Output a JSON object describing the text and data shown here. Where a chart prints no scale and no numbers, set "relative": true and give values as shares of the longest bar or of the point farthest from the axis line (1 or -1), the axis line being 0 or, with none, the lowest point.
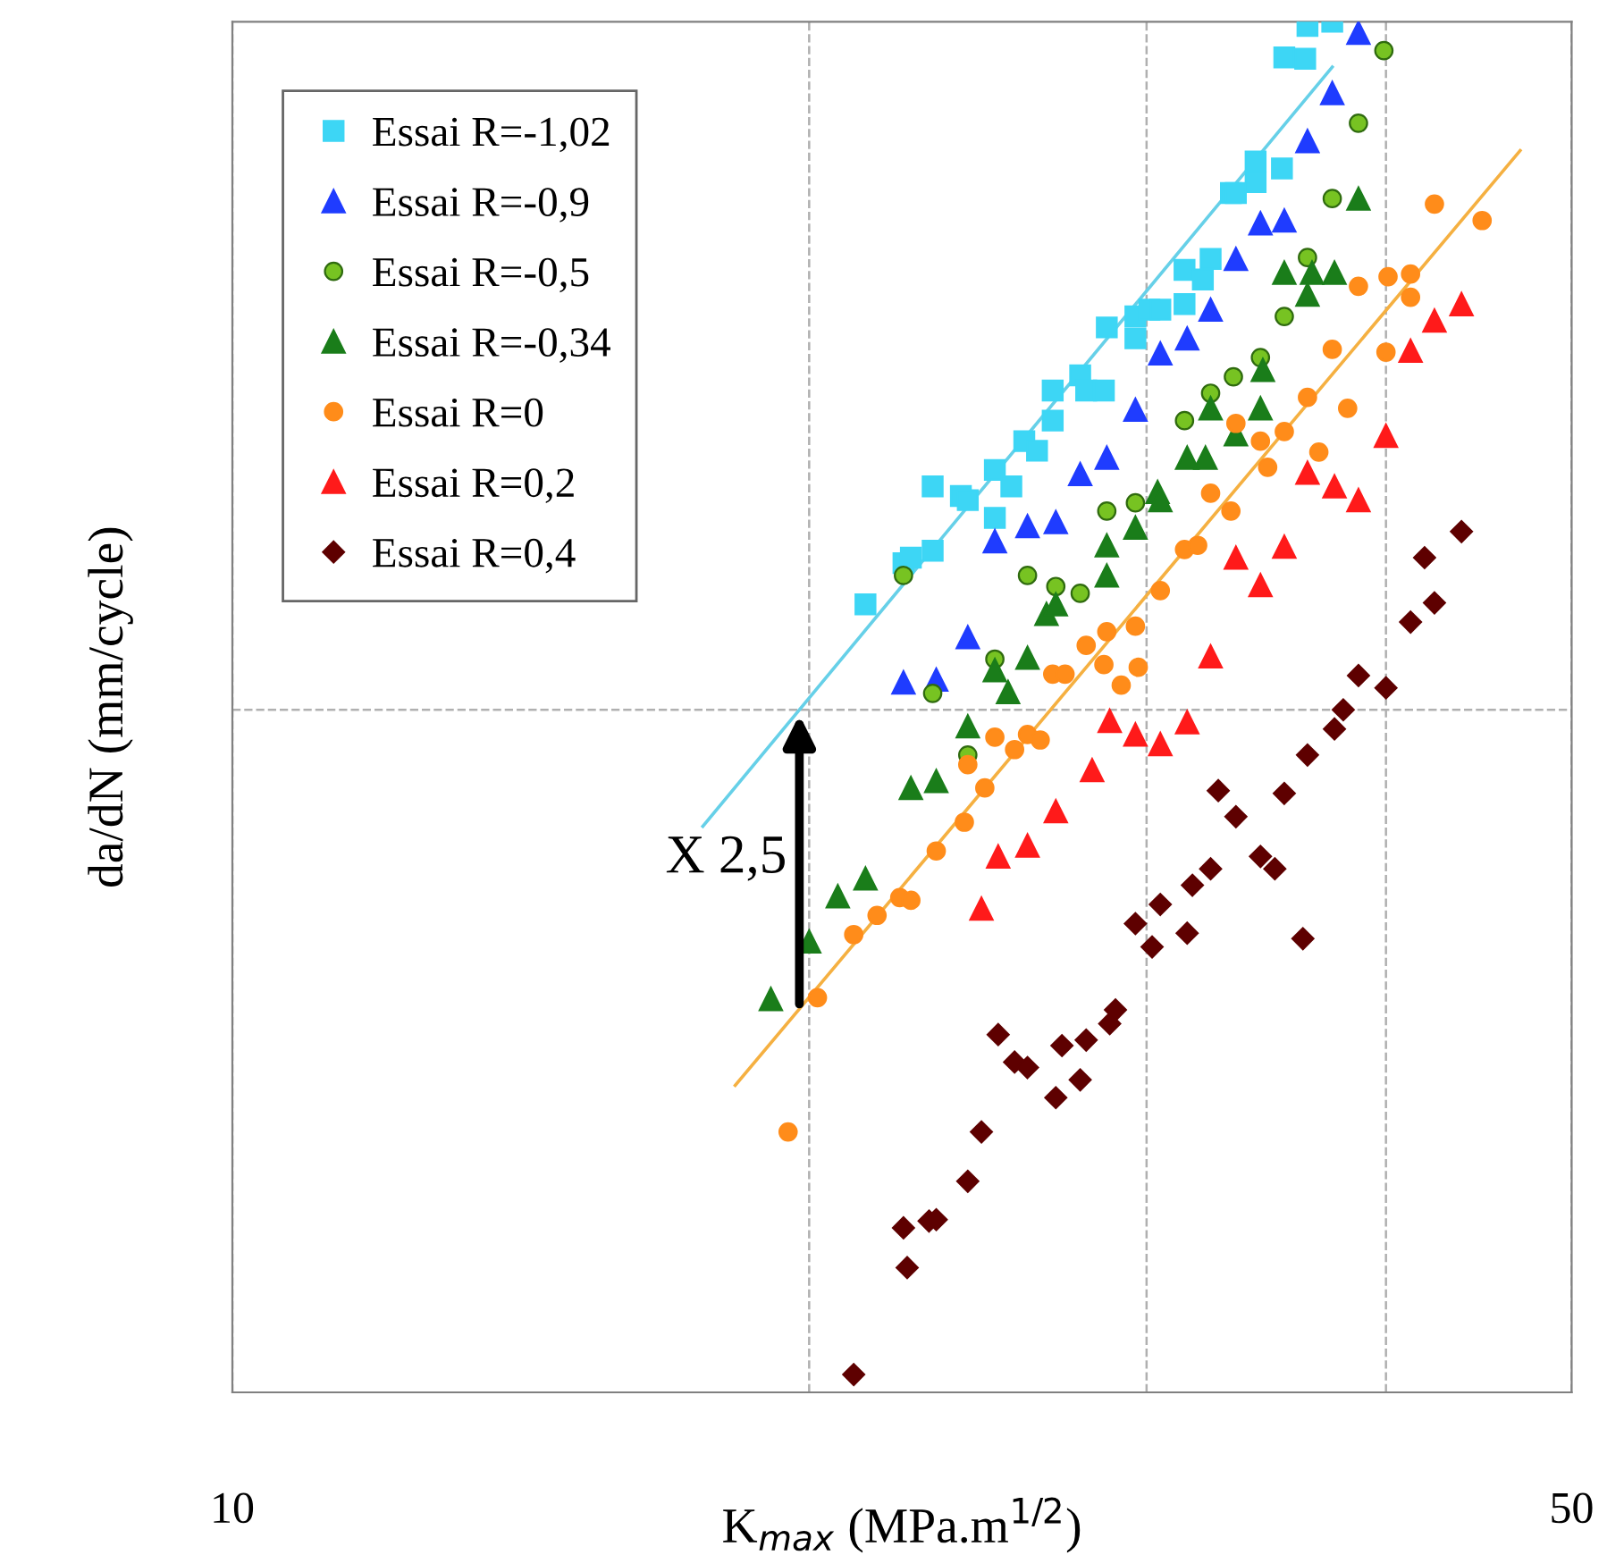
{
  "chart_data": {
    "type": "scatter",
    "xlabel": "K$_{max}$ (MPa.m$^{1/2}$)",
    "ylabel": "da/dN (mm/cycle)",
    "log": "x",
    "relative": true,
    "xlim": [
      10,
      50
    ],
    "xticks": [
      10,
      {
        "value": 20,
        "label": null
      },
      {
        "value": 30,
        "label": null
      },
      {
        "value": 40,
        "label": null
      },
      50
    ],
    "grid": "x",
    "legend": "top left",
    "ref_lines": [
      {
        "axis": "y",
        "value": 0.498,
        "color": "#b0b0b0",
        "line_style": "dashed"
      }
    ],
    "annotations": [
      "X 2,5"
    ],
    "series": [
      {
        "name": "Essai R=-1,02",
        "color": "#3dd6f5",
        "marker": "square",
        "x": [
          21.4,
          22.4,
          22.6,
          23.2,
          23.2,
          24.0,
          24.2,
          25.0,
          25.5,
          25.0,
          25.9,
          26.3,
          26.8,
          26.8,
          27.7,
          27.9,
          28.5,
          28.6,
          29.6,
          29.6,
          30.1,
          30.5,
          31.4,
          31.4,
          32.1,
          32.4,
          33.2,
          33.4,
          34.2,
          34.2,
          35.3,
          35.4,
          36.3,
          36.4,
          37.5
        ],
        "values": [
          0.575,
          0.605,
          0.609,
          0.614,
          0.661,
          0.654,
          0.651,
          0.673,
          0.661,
          0.638,
          0.694,
          0.687,
          0.731,
          0.709,
          0.742,
          0.731,
          0.731,
          0.777,
          0.785,
          0.769,
          0.79,
          0.79,
          0.819,
          0.794,
          0.812,
          0.827,
          0.875,
          0.875,
          0.898,
          0.883,
          0.893,
          0.974,
          0.973,
          0.997,
          1.0
        ]
      },
      {
        "name": "Essai R=-0,9",
        "color": "#1f3cff",
        "marker": "triangle",
        "x": [
          22.4,
          23.3,
          24.2,
          25.0,
          26.0,
          26.9,
          27.7,
          28.6,
          29.6,
          30.5,
          31.5,
          32.4,
          33.4,
          34.4,
          35.4,
          36.4,
          37.5,
          38.7
        ],
        "values": [
          0.518,
          0.52,
          0.551,
          0.621,
          0.632,
          0.635,
          0.67,
          0.682,
          0.717,
          0.758,
          0.769,
          0.79,
          0.827,
          0.853,
          0.855,
          0.913,
          0.948,
          0.992
        ]
      },
      {
        "name": "Essai R=-0,5",
        "color": "#77c322",
        "marker": "circle",
        "x": [
          22.4,
          23.2,
          24.2,
          25.0,
          26.0,
          26.9,
          27.7,
          28.6,
          29.6,
          31.4,
          32.4,
          33.3,
          34.4,
          35.4,
          36.4,
          37.5,
          38.7,
          39.9
        ],
        "values": [
          0.596,
          0.51,
          0.465,
          0.535,
          0.596,
          0.588,
          0.583,
          0.643,
          0.649,
          0.709,
          0.729,
          0.741,
          0.755,
          0.785,
          0.828,
          0.871,
          0.926,
          0.979
        ]
      },
      {
        "name": "Essai R=-0,34",
        "color": "#1a7d1a",
        "marker": "triangle",
        "x": [
          19.1,
          20.0,
          20.7,
          21.4,
          22.6,
          23.3,
          24.2,
          25.0,
          25.4,
          26.0,
          26.6,
          26.9,
          28.6,
          28.6,
          29.6,
          30.4,
          30.5,
          31.5,
          32.2,
          32.4,
          33.4,
          34.4,
          34.5,
          35.4,
          36.4,
          36.6,
          37.6,
          38.7
        ],
        "values": [
          0.287,
          0.329,
          0.362,
          0.375,
          0.441,
          0.446,
          0.486,
          0.527,
          0.511,
          0.536,
          0.568,
          0.575,
          0.596,
          0.618,
          0.631,
          0.657,
          0.651,
          0.682,
          0.682,
          0.718,
          0.699,
          0.718,
          0.746,
          0.817,
          0.801,
          0.817,
          0.817,
          0.871
        ]
      },
      {
        "name": "Essai R=0",
        "color": "#ff8c1a",
        "marker": "circle",
        "x": [
          19.5,
          20.2,
          21.1,
          21.7,
          22.3,
          22.6,
          23.3,
          24.1,
          24.2,
          24.7,
          25.0,
          25.6,
          26.0,
          26.4,
          26.8,
          27.2,
          27.9,
          28.5,
          28.6,
          29.1,
          29.6,
          29.7,
          30.5,
          31.4,
          31.9,
          32.4,
          33.2,
          33.4,
          34.4,
          34.7,
          35.4,
          36.4,
          36.9,
          37.5,
          38.2,
          38.7,
          40.0,
          40.1,
          41.2,
          41.2,
          42.4,
          44.9
        ],
        "values": [
          0.19,
          0.288,
          0.334,
          0.348,
          0.361,
          0.359,
          0.395,
          0.416,
          0.458,
          0.441,
          0.478,
          0.469,
          0.48,
          0.476,
          0.524,
          0.524,
          0.545,
          0.531,
          0.555,
          0.516,
          0.559,
          0.529,
          0.585,
          0.615,
          0.618,
          0.656,
          0.643,
          0.707,
          0.694,
          0.675,
          0.701,
          0.726,
          0.686,
          0.761,
          0.718,
          0.807,
          0.759,
          0.814,
          0.816,
          0.799,
          0.867,
          0.855
        ]
      },
      {
        "name": "Essai R=0,2",
        "color": "#ff1a1a",
        "marker": "triangle",
        "x": [
          24.6,
          25.1,
          26.0,
          26.9,
          28.1,
          28.7,
          29.6,
          30.5,
          31.5,
          32.4,
          33.4,
          34.4,
          35.4,
          36.4,
          37.6,
          38.7,
          40.0,
          41.2,
          42.4,
          43.8
        ],
        "values": [
          0.353,
          0.391,
          0.399,
          0.424,
          0.454,
          0.49,
          0.48,
          0.473,
          0.489,
          0.537,
          0.609,
          0.589,
          0.617,
          0.671,
          0.661,
          0.651,
          0.698,
          0.76,
          0.782,
          0.794
        ]
      },
      {
        "name": "Essai R=0,4",
        "color": "#5e0000",
        "marker": "diamond",
        "x": [
          21.1,
          22.4,
          22.5,
          23.1,
          23.3,
          24.2,
          24.6,
          25.1,
          25.6,
          26.0,
          26.9,
          27.1,
          27.7,
          27.9,
          28.7,
          28.9,
          29.6,
          30.2,
          30.5,
          31.5,
          31.7,
          32.4,
          32.7,
          33.4,
          34.4,
          35.0,
          35.4,
          36.2,
          36.4,
          37.6,
          38.0,
          38.7,
          40.0,
          41.2,
          41.9,
          42.4,
          43.8
        ],
        "values": [
          0.013,
          0.12,
          0.091,
          0.125,
          0.126,
          0.154,
          0.19,
          0.261,
          0.241,
          0.237,
          0.215,
          0.253,
          0.228,
          0.257,
          0.269,
          0.279,
          0.342,
          0.325,
          0.356,
          0.335,
          0.37,
          0.382,
          0.439,
          0.42,
          0.391,
          0.382,
          0.437,
          0.331,
          0.465,
          0.484,
          0.498,
          0.523,
          0.514,
          0.562,
          0.609,
          0.576,
          0.628
        ]
      },
      {
        "type": "line",
        "color": "#66d0e8",
        "marker": "none",
        "x": [
          17.6,
          37.5
        ],
        "values": [
          0.413,
          0.967
        ]
      },
      {
        "type": "line",
        "color": "#f5b041",
        "marker": "none",
        "x": [
          18.3,
          47.0
        ],
        "values": [
          0.224,
          0.906
        ]
      }
    ]
  }
}
